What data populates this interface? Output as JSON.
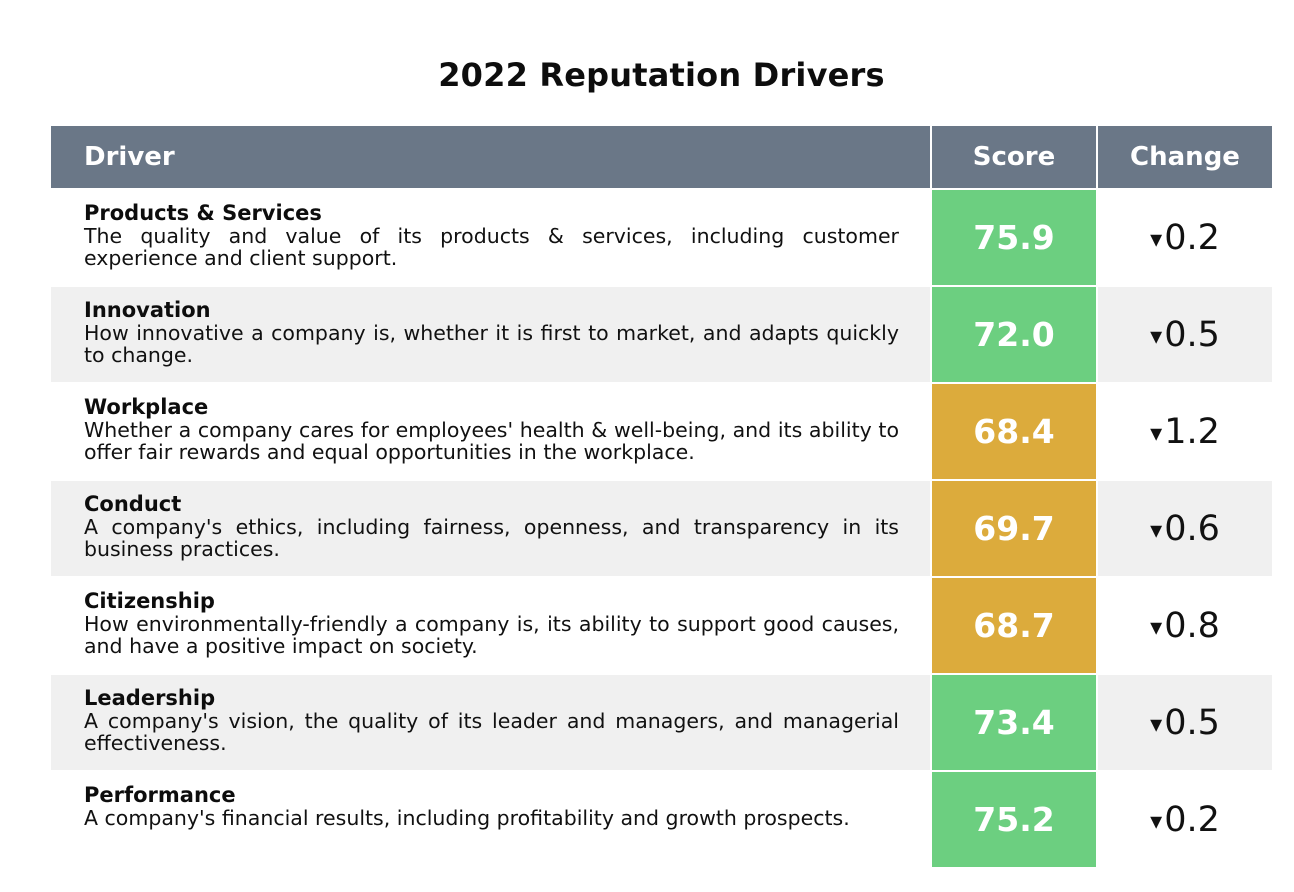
{
  "title": "2022 Reputation Drivers",
  "columns": {
    "driver": "Driver",
    "score": "Score",
    "change": "Change"
  },
  "colors": {
    "header_bg": "#6a7787",
    "score_high": "#6ccf80",
    "score_mid": "#dcab3c",
    "row_alt": "#f0f0f0"
  },
  "rows": [
    {
      "name": "Products & Services",
      "description": "The quality and value of its products & services, including customer experience and client support.",
      "score": "75.9",
      "score_color": "#6ccf80",
      "arrow": "▾",
      "change": "0.2"
    },
    {
      "name": "Innovation",
      "description": "How innovative a company is, whether it is first to market, and adapts quickly to change.",
      "score": "72.0",
      "score_color": "#6ccf80",
      "arrow": "▾",
      "change": "0.5"
    },
    {
      "name": "Workplace",
      "description": "Whether a company cares for employees' health & well-being, and its ability to offer fair rewards and equal opportunities in the workplace.",
      "score": "68.4",
      "score_color": "#dcab3c",
      "arrow": "▾",
      "change": "1.2"
    },
    {
      "name": "Conduct",
      "description": "A company's ethics, including fairness, openness, and transparency in its business practices.",
      "score": "69.7",
      "score_color": "#dcab3c",
      "arrow": "▾",
      "change": "0.6"
    },
    {
      "name": "Citizenship",
      "description": "How environmentally-friendly a company is, its ability to support good causes, and have a positive impact on society.",
      "score": "68.7",
      "score_color": "#dcab3c",
      "arrow": "▾",
      "change": "0.8"
    },
    {
      "name": "Leadership",
      "description": "A company's vision, the quality of its leader and managers, and managerial effectiveness.",
      "score": "73.4",
      "score_color": "#6ccf80",
      "arrow": "▾",
      "change": "0.5"
    },
    {
      "name": "Performance",
      "description": "A company's financial results, including profitability and growth prospects.",
      "score": "75.2",
      "score_color": "#6ccf80",
      "arrow": "▾",
      "change": "0.2"
    }
  ],
  "chart_data": {
    "type": "table",
    "title": "2022 Reputation Drivers",
    "columns": [
      "Driver",
      "Score",
      "Change"
    ],
    "categories": [
      "Products & Services",
      "Innovation",
      "Workplace",
      "Conduct",
      "Citizenship",
      "Leadership",
      "Performance"
    ],
    "series": [
      {
        "name": "Score",
        "values": [
          75.9,
          72.0,
          68.4,
          69.7,
          68.7,
          73.4,
          75.2
        ]
      },
      {
        "name": "Change",
        "values": [
          -0.2,
          -0.5,
          -1.2,
          -0.6,
          -0.8,
          -0.5,
          -0.2
        ]
      }
    ]
  }
}
